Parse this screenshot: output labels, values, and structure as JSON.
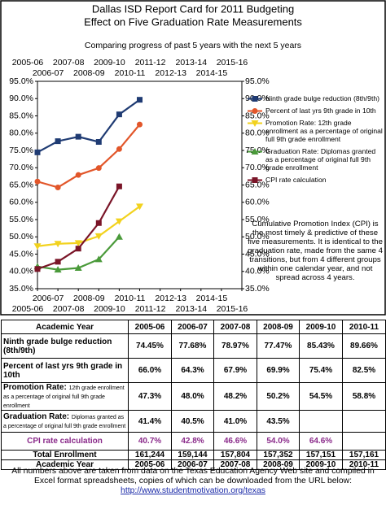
{
  "chart_data": {
    "type": "line",
    "title": "Dallas ISD Report Card for 2011 Budgeting",
    "title2": "Effect on Five Graduation Rate Measurements",
    "subtitle": "Comparing progress of past 5 years with the next 5 years",
    "categories": [
      "2005-06",
      "2006-07",
      "2007-08",
      "2008-09",
      "2009-10",
      "2010-11",
      "2011-12",
      "2012-13",
      "2013-14",
      "2014-15",
      "2015-16"
    ],
    "ylim": [
      35,
      95
    ],
    "yticks": [
      {
        "value": 35,
        "label": "35.0%"
      },
      {
        "value": 40,
        "label": "40.0%"
      },
      {
        "value": 45,
        "label": "45.0%"
      },
      {
        "value": 50,
        "label": "50.0%"
      },
      {
        "value": 55,
        "label": "55.0%"
      },
      {
        "value": 60,
        "label": "60.0%"
      },
      {
        "value": 65,
        "label": "65.0%"
      },
      {
        "value": 70,
        "label": "70.0%"
      },
      {
        "value": 75,
        "label": "75.0%"
      },
      {
        "value": 80,
        "label": "80.0%"
      },
      {
        "value": 85,
        "label": "85.0%"
      },
      {
        "value": 90,
        "label": "90.0%"
      },
      {
        "value": 95,
        "label": "95.0%"
      }
    ],
    "grid": false,
    "series": [
      {
        "name": "Ninth grade bulge  reduction (8th/9th)",
        "color": "#1f3b73",
        "marker": "square",
        "values": [
          74.45,
          77.68,
          78.97,
          77.47,
          85.43,
          89.66,
          null,
          null,
          null,
          null,
          null
        ]
      },
      {
        "name": "Percent of last yrs 9th grade in 10th",
        "color": "#e2562a",
        "marker": "circle",
        "values": [
          66.0,
          64.3,
          67.9,
          69.9,
          75.4,
          82.5,
          null,
          null,
          null,
          null,
          null
        ]
      },
      {
        "name": "Promotion Rate: 12th grade enrollment as a percentage of original full 9th grade enrollment",
        "color": "#f2d21e",
        "marker": "tridown",
        "values": [
          47.3,
          48.0,
          48.2,
          50.2,
          54.5,
          58.8,
          null,
          null,
          null,
          null,
          null
        ]
      },
      {
        "name": "Graduation Rate: Diplomas granted as a percentage of original full 9th grade enrollment",
        "color": "#4a9a3a",
        "marker": "triup",
        "values": [
          41.4,
          40.5,
          41.0,
          43.5,
          50.0,
          null,
          null,
          null,
          null,
          null,
          null
        ]
      },
      {
        "name": "CPI rate calculation",
        "color": "#7a1528",
        "marker": "square",
        "values": [
          40.7,
          42.8,
          46.6,
          54.0,
          64.6,
          null,
          null,
          null,
          null,
          null,
          null
        ]
      }
    ],
    "annotation": "Cumulative Promotion Index (CPI) is the most timely & predictive of these five measurements.  It is identical to the graduation rate, made from the same 4 transitions, but from 4 different groups within one calendar year, and not spread across 4 years."
  },
  "table": {
    "header": [
      "Academic Year",
      "2005-06",
      "2006-07",
      "2007-08",
      "2008-09",
      "2009-10",
      "2010-11"
    ],
    "rows": [
      {
        "label": "Ninth grade bulge  reduction (8th/9th)",
        "cells": [
          "74.45%",
          "77.68%",
          "78.97%",
          "77.47%",
          "85.43%",
          "89.66%"
        ]
      },
      {
        "label": "Percent of last yrs 9th grade in 10th",
        "cells": [
          "66.0%",
          "64.3%",
          "67.9%",
          "69.9%",
          "75.4%",
          "82.5%"
        ]
      },
      {
        "label": "Promotion Rate:",
        "note": "12th grade enrollment as a percentage of original full 9th grade enrollment",
        "cells": [
          "47.3%",
          "48.0%",
          "48.2%",
          "50.2%",
          "54.5%",
          "58.8%"
        ]
      },
      {
        "label": "Graduation Rate:",
        "note": "Diplomas granted as a percentage of original full 9th grade enrollment",
        "cells": [
          "41.4%",
          "40.5%",
          "41.0%",
          "43.5%",
          null,
          null
        ]
      },
      {
        "label": "CPI rate calculation",
        "cells": [
          "40.7%",
          "42.8%",
          "46.6%",
          "54.0%",
          "64.6%",
          null
        ]
      },
      {
        "label": "Total Enrollment",
        "cells": [
          "161,244",
          "159,144",
          "157,804",
          "157,352",
          "157,151",
          "157,161"
        ]
      }
    ]
  },
  "footer": {
    "text": "All numbers above are taken from data on the Texas Education Agency Web site and compiled in Excel format spreadsheets, copies of which can be downloaded from the URL below:",
    "url": "http://www.studentmotivation.org/texas"
  }
}
